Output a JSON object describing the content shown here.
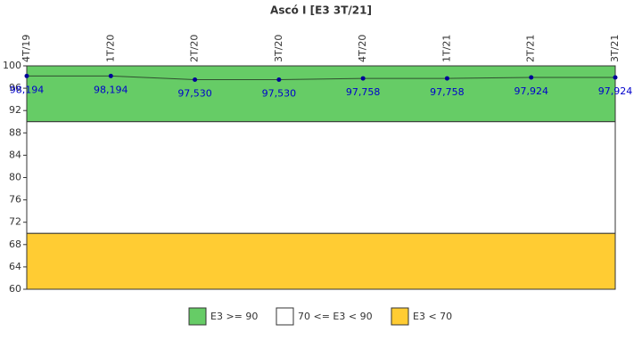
{
  "chart_data": {
    "type": "line",
    "title": "Ascó I [E3 3T/21]",
    "categories": [
      "4T/19",
      "1T/20",
      "2T/20",
      "3T/20",
      "4T/20",
      "1T/21",
      "2T/21",
      "3T/21"
    ],
    "series": [
      {
        "name": "E3",
        "color": "#000099",
        "line_color": "#2f4f2f",
        "values": [
          98.194,
          98.194,
          97.53,
          97.53,
          97.758,
          97.758,
          97.924,
          97.924
        ],
        "value_labels": [
          "98,194",
          "98,194",
          "97,530",
          "97,530",
          "97,758",
          "97,758",
          "97,924",
          "97,924"
        ]
      }
    ],
    "bands": [
      {
        "name": "E3 >= 90",
        "from": 90,
        "to": 100,
        "color": "#66cc66"
      },
      {
        "name": "70 <= E3 < 90",
        "from": 70,
        "to": 90,
        "color": "#ffffff"
      },
      {
        "name": "E3 < 70",
        "from": 60,
        "to": 70,
        "color": "#ffcc33"
      }
    ],
    "ylim": [
      60,
      100
    ],
    "yticks": [
      60,
      64,
      68,
      72,
      76,
      80,
      84,
      88,
      92,
      96,
      100
    ]
  }
}
